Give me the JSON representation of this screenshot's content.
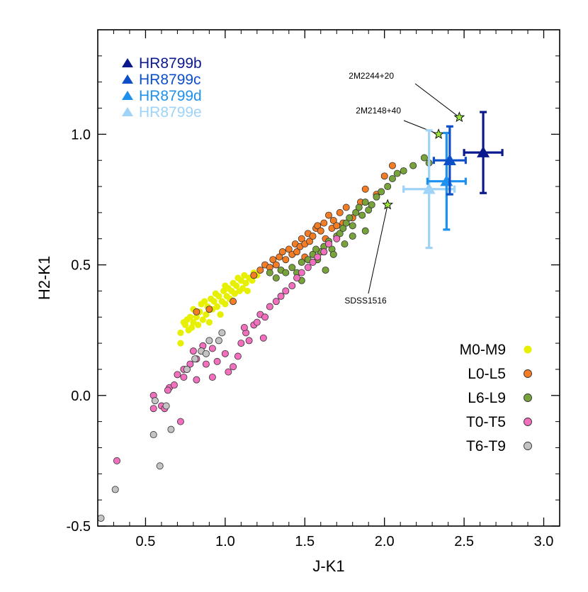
{
  "chart_data": {
    "type": "scatter",
    "xlabel": "J-K1",
    "ylabel": "H2-K1",
    "xlim": [
      0.2,
      3.1
    ],
    "ylim": [
      -0.5,
      1.4
    ],
    "x_ticks": [
      0.5,
      1.0,
      1.5,
      2.0,
      2.5,
      3.0
    ],
    "x_tick_labels": [
      "0.5",
      "1.0",
      "1.5",
      "2.0",
      "2.5",
      "3.0"
    ],
    "y_ticks": [
      -0.5,
      0.0,
      0.5,
      1.0
    ],
    "y_tick_labels": [
      "-0.5",
      "0.0",
      "0.5",
      "1.0"
    ],
    "grid": false,
    "planets_legend_placement": "top-left",
    "types_legend_placement": "lower-right",
    "planets": [
      {
        "name": "HR8799b",
        "color": "#0a1a8c",
        "x": 2.62,
        "y": 0.93,
        "xerr": 0.12,
        "yerr": 0.155
      },
      {
        "name": "HR8799c",
        "color": "#0d4fc9",
        "x": 2.41,
        "y": 0.9,
        "xerr": 0.1,
        "yerr": 0.13
      },
      {
        "name": "HR8799d",
        "color": "#1e90ee",
        "x": 2.39,
        "y": 0.82,
        "xerr": 0.12,
        "yerr": 0.185
      },
      {
        "name": "HR8799e",
        "color": "#9fd3f7",
        "x": 2.28,
        "y": 0.79,
        "xerr": 0.16,
        "yerr": 0.225
      }
    ],
    "annotations": [
      {
        "text": "2M2244+20",
        "x": 2.47,
        "y": 1.065
      },
      {
        "text": "2M2148+40",
        "x": 2.34,
        "y": 1.0
      },
      {
        "text": "SDSS1516",
        "x": 2.02,
        "y": 0.73
      }
    ],
    "series": [
      {
        "name": "M0-M9",
        "color": "#e7f000",
        "points": [
          [
            0.72,
            0.2
          ],
          [
            0.72,
            0.24
          ],
          [
            0.74,
            0.28
          ],
          [
            0.75,
            0.27
          ],
          [
            0.76,
            0.29
          ],
          [
            0.77,
            0.25
          ],
          [
            0.78,
            0.3
          ],
          [
            0.8,
            0.28
          ],
          [
            0.8,
            0.33
          ],
          [
            0.82,
            0.3
          ],
          [
            0.83,
            0.27
          ],
          [
            0.84,
            0.32
          ],
          [
            0.85,
            0.35
          ],
          [
            0.86,
            0.29
          ],
          [
            0.88,
            0.31
          ],
          [
            0.89,
            0.34
          ],
          [
            0.9,
            0.28
          ],
          [
            0.91,
            0.37
          ],
          [
            0.92,
            0.33
          ],
          [
            0.93,
            0.36
          ],
          [
            0.95,
            0.34
          ],
          [
            0.96,
            0.38
          ],
          [
            0.97,
            0.31
          ],
          [
            0.98,
            0.36
          ],
          [
            0.99,
            0.4
          ],
          [
            1.0,
            0.35
          ],
          [
            1.01,
            0.38
          ],
          [
            1.02,
            0.41
          ],
          [
            1.03,
            0.37
          ],
          [
            1.04,
            0.4
          ],
          [
            1.05,
            0.43
          ],
          [
            1.06,
            0.39
          ],
          [
            1.07,
            0.42
          ],
          [
            1.08,
            0.45
          ],
          [
            1.09,
            0.4
          ],
          [
            1.1,
            0.44
          ],
          [
            1.11,
            0.41
          ],
          [
            1.12,
            0.46
          ],
          [
            1.13,
            0.43
          ],
          [
            1.14,
            0.4
          ],
          [
            1.15,
            0.45
          ],
          [
            1.17,
            0.44
          ],
          [
            1.18,
            0.47
          ],
          [
            1.2,
            0.46
          ],
          [
            0.79,
            0.26
          ],
          [
            0.87,
            0.36
          ],
          [
            0.94,
            0.39
          ],
          [
            1.0,
            0.42
          ]
        ]
      },
      {
        "name": "L0-L5",
        "color": "#f47c25",
        "points": [
          [
            0.82,
            0.32
          ],
          [
            0.9,
            0.33
          ],
          [
            1.05,
            0.36
          ],
          [
            1.18,
            0.46
          ],
          [
            1.22,
            0.48
          ],
          [
            1.25,
            0.5
          ],
          [
            1.28,
            0.49
          ],
          [
            1.3,
            0.52
          ],
          [
            1.32,
            0.5
          ],
          [
            1.34,
            0.53
          ],
          [
            1.36,
            0.55
          ],
          [
            1.38,
            0.52
          ],
          [
            1.4,
            0.56
          ],
          [
            1.42,
            0.54
          ],
          [
            1.44,
            0.58
          ],
          [
            1.45,
            0.55
          ],
          [
            1.47,
            0.57
          ],
          [
            1.48,
            0.6
          ],
          [
            1.5,
            0.58
          ],
          [
            1.52,
            0.62
          ],
          [
            1.53,
            0.59
          ],
          [
            1.55,
            0.61
          ],
          [
            1.57,
            0.64
          ],
          [
            1.58,
            0.65
          ],
          [
            1.6,
            0.63
          ],
          [
            1.62,
            0.66
          ],
          [
            1.63,
            0.6
          ],
          [
            1.65,
            0.69
          ],
          [
            1.67,
            0.64
          ],
          [
            1.68,
            0.67
          ],
          [
            1.7,
            0.65
          ],
          [
            1.72,
            0.7
          ],
          [
            1.74,
            0.66
          ],
          [
            1.76,
            0.72
          ],
          [
            1.8,
            0.68
          ],
          [
            1.85,
            0.74
          ],
          [
            1.88,
            0.79
          ],
          [
            1.95,
            0.77
          ],
          [
            2.0,
            0.84
          ],
          [
            2.05,
            0.88
          ],
          [
            1.62,
            0.55
          ],
          [
            1.5,
            0.53
          ]
        ]
      },
      {
        "name": "L6-L9",
        "color": "#78a33a",
        "points": [
          [
            1.28,
            0.47
          ],
          [
            1.32,
            0.45
          ],
          [
            1.35,
            0.48
          ],
          [
            1.38,
            0.47
          ],
          [
            1.42,
            0.49
          ],
          [
            1.45,
            0.47
          ],
          [
            1.48,
            0.51
          ],
          [
            1.52,
            0.52
          ],
          [
            1.55,
            0.54
          ],
          [
            1.58,
            0.52
          ],
          [
            1.6,
            0.55
          ],
          [
            1.62,
            0.57
          ],
          [
            1.65,
            0.59
          ],
          [
            1.67,
            0.56
          ],
          [
            1.7,
            0.61
          ],
          [
            1.72,
            0.62
          ],
          [
            1.74,
            0.64
          ],
          [
            1.76,
            0.66
          ],
          [
            1.78,
            0.68
          ],
          [
            1.8,
            0.65
          ],
          [
            1.82,
            0.7
          ],
          [
            1.84,
            0.72
          ],
          [
            1.86,
            0.69
          ],
          [
            1.88,
            0.74
          ],
          [
            1.9,
            0.71
          ],
          [
            1.92,
            0.73
          ],
          [
            1.95,
            0.76
          ],
          [
            1.98,
            0.78
          ],
          [
            2.02,
            0.8
          ],
          [
            2.05,
            0.83
          ],
          [
            2.08,
            0.85
          ],
          [
            2.12,
            0.86
          ],
          [
            2.18,
            0.88
          ],
          [
            2.25,
            0.91
          ],
          [
            2.28,
            0.89
          ],
          [
            1.68,
            0.54
          ],
          [
            1.75,
            0.58
          ],
          [
            1.88,
            0.63
          ],
          [
            1.8,
            0.61
          ],
          [
            1.48,
            0.44
          ],
          [
            1.57,
            0.56
          ],
          [
            1.63,
            0.48
          ]
        ]
      },
      {
        "name": "T0-T5",
        "color": "#f26fbe",
        "points": [
          [
            0.32,
            -0.25
          ],
          [
            0.55,
            0.0
          ],
          [
            0.55,
            -0.05
          ],
          [
            0.6,
            -0.04
          ],
          [
            0.62,
            -0.05
          ],
          [
            0.65,
            0.03
          ],
          [
            0.68,
            0.04
          ],
          [
            0.72,
            -0.1
          ],
          [
            0.74,
            0.07
          ],
          [
            0.76,
            0.1
          ],
          [
            0.78,
            0.12
          ],
          [
            0.8,
            0.17
          ],
          [
            0.82,
            0.14
          ],
          [
            0.86,
            0.19
          ],
          [
            0.88,
            0.12
          ],
          [
            0.92,
            0.18
          ],
          [
            0.95,
            0.13
          ],
          [
            1.0,
            0.16
          ],
          [
            1.05,
            0.11
          ],
          [
            1.08,
            0.15
          ],
          [
            1.1,
            0.2
          ],
          [
            1.13,
            0.24
          ],
          [
            1.15,
            0.21
          ],
          [
            1.18,
            0.27
          ],
          [
            1.2,
            0.28
          ],
          [
            1.22,
            0.31
          ],
          [
            1.25,
            0.3
          ],
          [
            1.28,
            0.34
          ],
          [
            1.32,
            0.36
          ],
          [
            1.35,
            0.38
          ],
          [
            1.38,
            0.4
          ],
          [
            1.42,
            0.42
          ],
          [
            1.45,
            0.45
          ],
          [
            1.48,
            0.47
          ],
          [
            1.52,
            0.49
          ],
          [
            1.55,
            0.51
          ],
          [
            1.58,
            0.53
          ],
          [
            1.62,
            0.55
          ],
          [
            1.65,
            0.58
          ],
          [
            1.7,
            0.6
          ],
          [
            0.7,
            0.08
          ],
          [
            0.74,
            0.1
          ],
          [
            0.64,
            0.02
          ],
          [
            0.82,
            0.06
          ],
          [
            0.92,
            0.07
          ],
          [
            1.02,
            0.09
          ],
          [
            1.12,
            0.26
          ],
          [
            1.24,
            0.22
          ]
        ]
      },
      {
        "name": "T6-T9",
        "color": "#c3c3c3",
        "points": [
          [
            0.22,
            -0.47
          ],
          [
            0.31,
            -0.36
          ],
          [
            0.55,
            -0.15
          ],
          [
            0.56,
            -0.02
          ],
          [
            0.59,
            -0.27
          ],
          [
            0.63,
            -0.04
          ],
          [
            0.66,
            -0.13
          ],
          [
            0.76,
            0.1
          ],
          [
            0.85,
            0.17
          ],
          [
            0.9,
            0.21
          ],
          [
            0.96,
            0.21
          ],
          [
            0.98,
            0.24
          ],
          [
            0.88,
            0.16
          ],
          [
            0.81,
            0.14
          ]
        ]
      }
    ]
  }
}
